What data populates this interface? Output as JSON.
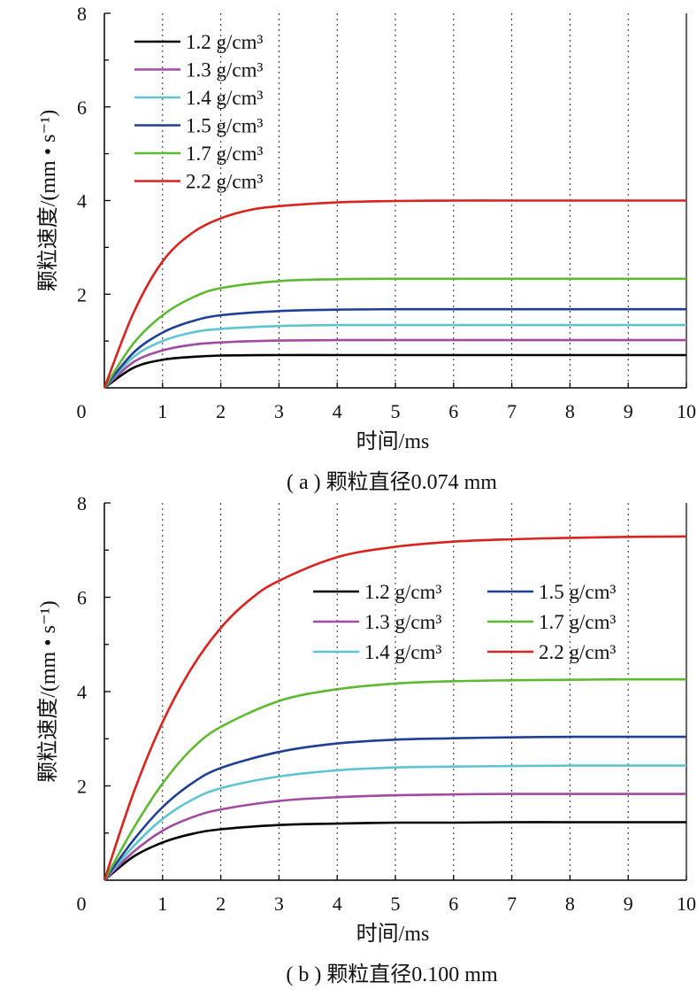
{
  "chart_data": [
    {
      "type": "line",
      "caption": "( a ) 颗粒直径0.074 mm",
      "xlabel": "时间/ms",
      "ylabel": "颗粒速度/(mm • s⁻¹)",
      "xlim": [
        0,
        10
      ],
      "ylim": [
        0,
        8
      ],
      "x_ticks": [
        "0",
        "1",
        "2",
        "3",
        "4",
        "5",
        "6",
        "7",
        "8",
        "9",
        "10"
      ],
      "y_ticks": [
        "2",
        "4",
        "6",
        "8"
      ],
      "grid": "vertical",
      "legend_placement": "top-left",
      "legend_columns": 1,
      "series": [
        {
          "name": "1.2 g/cm³",
          "color": "#000000",
          "x": [
            0,
            0.5,
            1,
            1.5,
            2,
            3,
            4,
            5,
            6,
            7,
            8,
            9,
            10
          ],
          "values": [
            0,
            0.43,
            0.6,
            0.66,
            0.69,
            0.7,
            0.7,
            0.7,
            0.7,
            0.7,
            0.7,
            0.7,
            0.7
          ]
        },
        {
          "name": "1.3 g/cm³",
          "color": "#a04aa0",
          "x": [
            0,
            0.5,
            1,
            1.5,
            2,
            3,
            4,
            5,
            6,
            7,
            8,
            9,
            10
          ],
          "values": [
            0,
            0.55,
            0.8,
            0.92,
            0.97,
            1.01,
            1.02,
            1.02,
            1.02,
            1.02,
            1.02,
            1.02,
            1.02
          ]
        },
        {
          "name": "1.4 g/cm³",
          "color": "#5fc4d0",
          "x": [
            0,
            0.5,
            1,
            1.5,
            2,
            3,
            4,
            5,
            6,
            7,
            8,
            9,
            10
          ],
          "values": [
            0,
            0.66,
            1.0,
            1.18,
            1.26,
            1.32,
            1.34,
            1.34,
            1.34,
            1.34,
            1.34,
            1.34,
            1.34
          ]
        },
        {
          "name": "1.5 g/cm³",
          "color": "#1f3f94",
          "x": [
            0,
            0.5,
            1,
            1.5,
            2,
            3,
            4,
            5,
            6,
            7,
            8,
            9,
            10
          ],
          "values": [
            0,
            0.75,
            1.18,
            1.42,
            1.55,
            1.64,
            1.67,
            1.68,
            1.68,
            1.68,
            1.68,
            1.68,
            1.68
          ]
        },
        {
          "name": "1.7 g/cm³",
          "color": "#5fb832",
          "x": [
            0,
            0.5,
            1,
            1.5,
            2,
            3,
            4,
            5,
            6,
            7,
            8,
            9,
            10
          ],
          "values": [
            0,
            0.95,
            1.55,
            1.92,
            2.13,
            2.28,
            2.32,
            2.33,
            2.33,
            2.33,
            2.33,
            2.33,
            2.33
          ]
        },
        {
          "name": "2.2 g/cm³",
          "color": "#d9231f",
          "x": [
            0,
            0.5,
            1,
            1.5,
            2,
            2.5,
            3,
            4,
            5,
            6,
            7,
            8,
            9,
            10
          ],
          "values": [
            0,
            1.6,
            2.7,
            3.3,
            3.62,
            3.8,
            3.88,
            3.96,
            3.99,
            4.0,
            4.0,
            4.0,
            4.0,
            4.0
          ]
        }
      ]
    },
    {
      "type": "line",
      "caption": "( b ) 颗粒直径0.100 mm",
      "xlabel": "时间/ms",
      "ylabel": "颗粒速度/(mm • s⁻¹)",
      "xlim": [
        0,
        10
      ],
      "ylim": [
        0,
        8
      ],
      "x_ticks": [
        "0",
        "1",
        "2",
        "3",
        "4",
        "5",
        "6",
        "7",
        "8",
        "9",
        "10"
      ],
      "y_ticks": [
        "2",
        "4",
        "6",
        "8"
      ],
      "grid": "vertical",
      "legend_placement": "center-right",
      "legend_columns": 2,
      "series": [
        {
          "name": "1.2 g/cm³",
          "color": "#000000",
          "x": [
            0,
            0.5,
            1,
            1.5,
            2,
            3,
            4,
            5,
            6,
            7,
            8,
            9,
            10
          ],
          "values": [
            0,
            0.5,
            0.8,
            0.98,
            1.08,
            1.17,
            1.2,
            1.22,
            1.22,
            1.23,
            1.23,
            1.23,
            1.23
          ]
        },
        {
          "name": "1.3 g/cm³",
          "color": "#a04aa0",
          "x": [
            0,
            0.5,
            1,
            1.5,
            2,
            3,
            4,
            5,
            6,
            7,
            8,
            9,
            10
          ],
          "values": [
            0,
            0.6,
            1.05,
            1.33,
            1.5,
            1.68,
            1.76,
            1.8,
            1.82,
            1.83,
            1.83,
            1.83,
            1.83
          ]
        },
        {
          "name": "1.4 g/cm³",
          "color": "#5fc4d0",
          "x": [
            0,
            0.5,
            1,
            1.5,
            2,
            3,
            4,
            5,
            6,
            7,
            8,
            9,
            10
          ],
          "values": [
            0,
            0.72,
            1.3,
            1.7,
            1.95,
            2.2,
            2.33,
            2.39,
            2.41,
            2.42,
            2.43,
            2.43,
            2.43
          ]
        },
        {
          "name": "1.5 g/cm³",
          "color": "#1f3f94",
          "x": [
            0,
            0.5,
            1,
            1.5,
            2,
            3,
            4,
            5,
            6,
            7,
            8,
            9,
            10
          ],
          "values": [
            0,
            0.85,
            1.55,
            2.05,
            2.38,
            2.72,
            2.9,
            2.98,
            3.01,
            3.03,
            3.04,
            3.04,
            3.04
          ]
        },
        {
          "name": "1.7 g/cm³",
          "color": "#5fb832",
          "x": [
            0,
            0.5,
            1,
            1.5,
            2,
            3,
            4,
            5,
            6,
            7,
            8,
            9,
            10
          ],
          "values": [
            0,
            1.1,
            2.05,
            2.78,
            3.25,
            3.8,
            4.05,
            4.17,
            4.22,
            4.24,
            4.25,
            4.26,
            4.26
          ]
        },
        {
          "name": "2.2 g/cm³",
          "color": "#d9231f",
          "x": [
            0,
            0.5,
            1,
            1.5,
            2,
            2.5,
            3,
            4,
            5,
            6,
            7,
            8,
            9,
            10
          ],
          "values": [
            0,
            1.85,
            3.35,
            4.5,
            5.35,
            5.95,
            6.35,
            6.85,
            7.07,
            7.18,
            7.23,
            7.26,
            7.28,
            7.29
          ]
        }
      ]
    }
  ]
}
